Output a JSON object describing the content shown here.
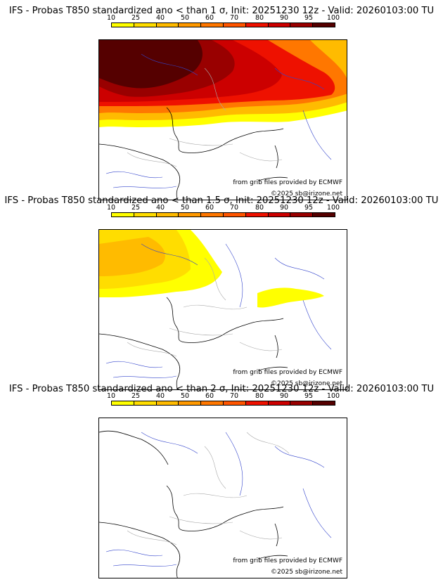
{
  "colorbar": {
    "ticks": [
      "10",
      "25",
      "40",
      "50",
      "60",
      "70",
      "80",
      "90",
      "95",
      "100"
    ],
    "colors": [
      "#ffff00",
      "#ffdd00",
      "#ffbb00",
      "#ff9900",
      "#ff7700",
      "#ff5500",
      "#ee1100",
      "#cc0000",
      "#990000",
      "#550000"
    ]
  },
  "panels": [
    {
      "title": "IFS - Probas T850  standardized ano < than 1 σ, Init: 20251230 12z - Valid: 20260103:00 TU",
      "credit_source": "from grib files provided by ECMWF",
      "credit_copyright": "©2025 sb@irizone.net"
    },
    {
      "title": "IFS - Probas T850  standardized ano < than 1.5 σ, Init: 20251230 12z - Valid: 20260103:00 TU",
      "credit_source": "from grib files provided by ECMWF",
      "credit_copyright": "©2025 sb@irizone.net"
    },
    {
      "title": "IFS - Probas T850  standardized ano < than 2 σ, Init: 20251230 12z - Valid: 20260103:00 TU",
      "credit_source": "from grib files provided by ECMWF",
      "credit_copyright": "©2025 sb@irizone.net"
    }
  ]
}
